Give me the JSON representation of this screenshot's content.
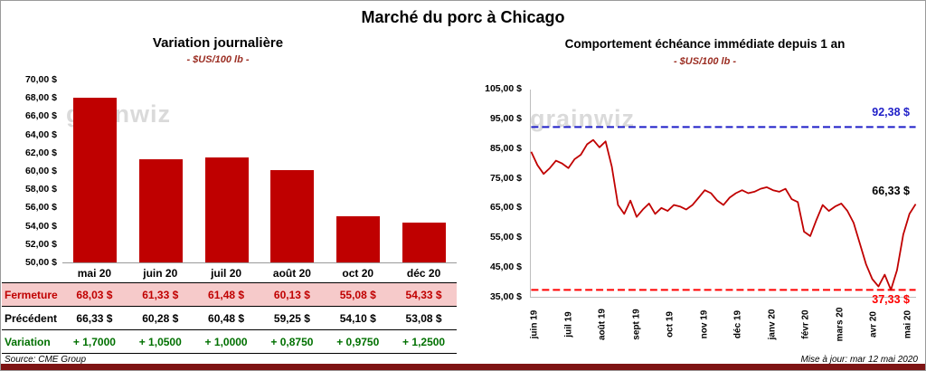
{
  "page": {
    "title": "Marché du porc à Chicago",
    "watermark": "grainwiz",
    "source": "Source: CME Group",
    "updated": "Mise à jour: mar 12 mai 2020"
  },
  "left_chart": {
    "title": "Variation journalière",
    "subtitle": "- $US/100 lb -",
    "chart_data": {
      "type": "bar",
      "title": "Variation journalière",
      "ylabel": "$US/100 lb",
      "categories": [
        "mai 20",
        "juin 20",
        "juil 20",
        "août 20",
        "oct 20",
        "déc 20"
      ],
      "values": [
        68.03,
        61.33,
        61.48,
        60.13,
        55.08,
        54.33
      ],
      "ylim": [
        50,
        70
      ],
      "yticks": [
        "70,00 $",
        "68,00 $",
        "66,00 $",
        "64,00 $",
        "62,00 $",
        "60,00 $",
        "58,00 $",
        "56,00 $",
        "54,00 $",
        "52,00 $",
        "50,00 $"
      ],
      "bar_color": "#bf0000",
      "grid": false
    },
    "table": {
      "rows": [
        {
          "label": "Fermeture",
          "style": "highlight",
          "values": [
            "68,03 $",
            "61,33 $",
            "61,48 $",
            "60,13 $",
            "55,08 $",
            "54,33 $"
          ]
        },
        {
          "label": "Précédent",
          "style": "normal",
          "values": [
            "66,33 $",
            "60,28 $",
            "60,48 $",
            "59,25 $",
            "54,10 $",
            "53,08 $"
          ]
        },
        {
          "label": "Variation",
          "style": "green",
          "values": [
            "+ 1,7000",
            "+ 1,0500",
            "+ 1,0000",
            "+ 0,8750",
            "+ 0,9750",
            "+ 1,2500"
          ]
        }
      ]
    }
  },
  "right_chart": {
    "title": "Comportement échéance immédiate depuis 1 an",
    "subtitle": "- $US/100 lb -",
    "chart_data": {
      "type": "line",
      "ylabel": "$US/100 lb",
      "x_labels": [
        "juin 19",
        "juil 19",
        "août 19",
        "sept 19",
        "oct 19",
        "nov 19",
        "déc 19",
        "janv 20",
        "févr 20",
        "mars 20",
        "avr 20",
        "mai 20"
      ],
      "values": [
        84.0,
        79.5,
        76.5,
        78.5,
        81.0,
        80.0,
        78.5,
        81.5,
        83.0,
        86.5,
        88.0,
        85.5,
        87.5,
        79.0,
        66.0,
        63.0,
        67.5,
        62.0,
        64.5,
        66.5,
        63.0,
        65.0,
        64.0,
        66.0,
        65.5,
        64.5,
        66.0,
        68.5,
        71.0,
        70.0,
        67.5,
        66.0,
        68.5,
        70.0,
        71.0,
        70.0,
        70.5,
        71.5,
        72.0,
        71.0,
        70.5,
        71.5,
        68.0,
        67.0,
        57.0,
        55.5,
        61.0,
        66.0,
        64.0,
        65.5,
        66.5,
        64.0,
        60.0,
        53.0,
        46.0,
        41.0,
        38.5,
        42.5,
        37.33,
        44.0,
        56.0,
        63.0,
        66.33
      ],
      "ylim": [
        35,
        105
      ],
      "yticks": [
        "105,00 $",
        "95,00 $",
        "85,00 $",
        "75,00 $",
        "65,00 $",
        "55,00 $",
        "45,00 $",
        "35,00 $"
      ],
      "line_color": "#c00000",
      "grid": false,
      "high_line": {
        "value": 92.38,
        "label": "92,38 $",
        "color": "#1f1fc8"
      },
      "low_line": {
        "value": 37.33,
        "label": "37,33 $",
        "color": "#ff0000"
      },
      "last_point_label": "66,33 $"
    }
  }
}
